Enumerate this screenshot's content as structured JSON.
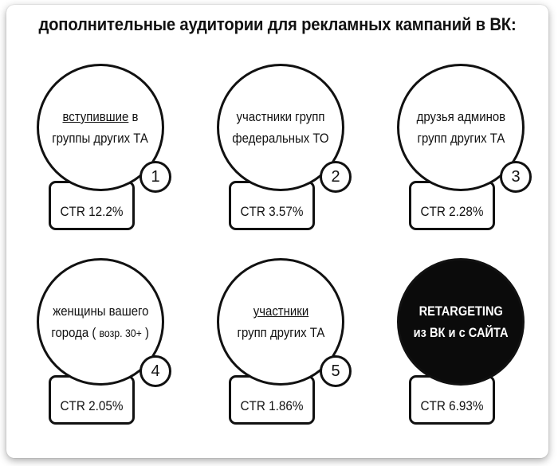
{
  "title": "дополнительные аудитории для рекламных кампаний в ВК:",
  "cards": [
    {
      "line1_underlined": "вступившие",
      "line1_rest": " в",
      "line2": "группы других ТА",
      "number": "1",
      "ctr": "CTR 12.2%"
    },
    {
      "line1": "участники групп",
      "line2": "федеральных ТО",
      "number": "2",
      "ctr": "CTR 3.57%"
    },
    {
      "line1": "друзья админов",
      "line2": "групп других ТА",
      "number": "3",
      "ctr": "CTR 2.28%"
    },
    {
      "line1": "женщины вашего",
      "line2_a": "города ( ",
      "line2_small": "возр. 30+",
      "line2_b": " )",
      "number": "4",
      "ctr": "CTR 2.05%"
    },
    {
      "line1_underlined": "участники",
      "line2": "групп других ТА",
      "number": "5",
      "ctr": "CTR 1.86%"
    },
    {
      "line1": "RETARGETING",
      "line2": "из ВК и с САЙТА",
      "ctr": "CTR 6.93%"
    }
  ],
  "colors": {
    "dark_circle": "#0b0b0b",
    "stroke": "#111111"
  }
}
